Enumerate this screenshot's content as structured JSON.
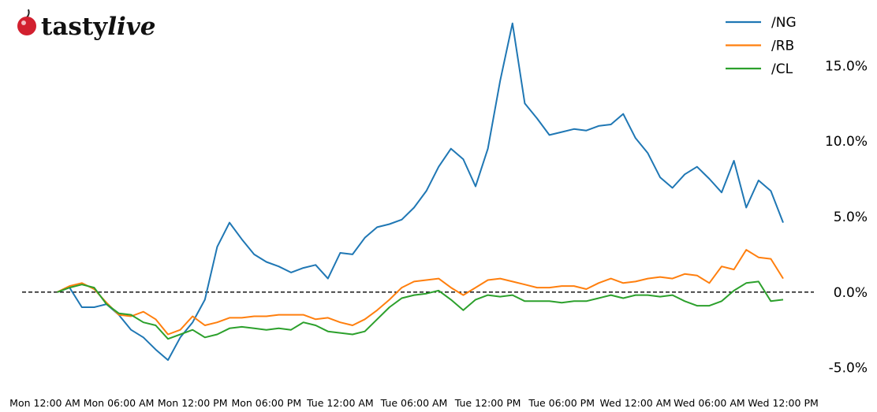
{
  "brand": [
    "tasty",
    "live"
  ],
  "chart_data": {
    "type": "line",
    "categories": [
      "Mon 12:00 AM",
      null,
      null,
      null,
      null,
      null,
      "Mon 06:00 AM",
      null,
      null,
      null,
      null,
      null,
      "Mon 12:00 PM",
      null,
      null,
      null,
      null,
      null,
      "Mon 06:00 PM",
      null,
      null,
      null,
      null,
      null,
      "Tue 12:00 AM",
      null,
      null,
      null,
      null,
      null,
      "Tue 06:00 AM",
      null,
      null,
      null,
      null,
      null,
      "Tue 12:00 PM",
      null,
      null,
      null,
      null,
      null,
      "Tue 06:00 PM",
      null,
      null,
      null,
      null,
      null,
      "Wed 12:00 AM",
      null,
      null,
      null,
      null,
      null,
      "Wed 06:00 AM",
      null,
      null,
      null,
      null,
      null,
      "Wed 12:00 PM"
    ],
    "series": [
      {
        "name": "/NG",
        "color": "#1f77b4",
        "values": [
          null,
          0,
          0.3,
          -1.0,
          -1.0,
          -0.8,
          -1.5,
          -2.5,
          -3.0,
          -3.8,
          -4.5,
          -3.0,
          -2.0,
          -0.5,
          3.0,
          4.6,
          3.5,
          2.5,
          2.0,
          1.7,
          1.3,
          1.6,
          1.8,
          0.9,
          2.6,
          2.5,
          3.6,
          4.3,
          4.5,
          4.8,
          5.6,
          6.7,
          8.3,
          9.5,
          8.8,
          7.0,
          9.5,
          14.0,
          17.8,
          12.5,
          11.5,
          10.4,
          10.6,
          10.8,
          10.7,
          11.0,
          11.1,
          11.8,
          10.2,
          9.2,
          7.6,
          6.9,
          7.8,
          8.3,
          7.5,
          6.6,
          8.7,
          5.6,
          7.4,
          6.7,
          4.6
        ]
      },
      {
        "name": "/RB",
        "color": "#ff7f0e",
        "values": [
          null,
          0,
          0.4,
          0.6,
          0.2,
          -0.7,
          -1.5,
          -1.6,
          -1.3,
          -1.8,
          -2.8,
          -2.5,
          -1.6,
          -2.2,
          -2.0,
          -1.7,
          -1.7,
          -1.6,
          -1.6,
          -1.5,
          -1.5,
          -1.5,
          -1.8,
          -1.7,
          -2.0,
          -2.2,
          -1.8,
          -1.2,
          -0.5,
          0.3,
          0.7,
          0.8,
          0.9,
          0.3,
          -0.2,
          0.3,
          0.8,
          0.9,
          0.7,
          0.5,
          0.3,
          0.3,
          0.4,
          0.4,
          0.2,
          0.6,
          0.9,
          0.6,
          0.7,
          0.9,
          1.0,
          0.9,
          1.2,
          1.1,
          0.6,
          1.7,
          1.5,
          2.8,
          2.3,
          2.2,
          0.9
        ]
      },
      {
        "name": "/CL",
        "color": "#2ca02c",
        "values": [
          null,
          0,
          0.3,
          0.5,
          0.3,
          -0.8,
          -1.4,
          -1.5,
          -2.0,
          -2.2,
          -3.1,
          -2.8,
          -2.5,
          -3.0,
          -2.8,
          -2.4,
          -2.3,
          -2.4,
          -2.5,
          -2.4,
          -2.5,
          -2.0,
          -2.2,
          -2.6,
          -2.7,
          -2.8,
          -2.6,
          -1.8,
          -1.0,
          -0.4,
          -0.2,
          -0.1,
          0.1,
          -0.5,
          -1.2,
          -0.5,
          -0.2,
          -0.3,
          -0.2,
          -0.6,
          -0.6,
          -0.6,
          -0.7,
          -0.6,
          -0.6,
          -0.4,
          -0.2,
          -0.4,
          -0.2,
          -0.2,
          -0.3,
          -0.2,
          -0.6,
          -0.9,
          -0.9,
          -0.6,
          0.1,
          0.6,
          0.7,
          -0.6,
          -0.5
        ]
      }
    ],
    "ylim": [
      -5.8,
      18.3
    ],
    "yticks": [
      {
        "value": -5,
        "label": "-5.0%"
      },
      {
        "value": 0,
        "label": "0.0%"
      },
      {
        "value": 5,
        "label": "5.0%"
      },
      {
        "value": 10,
        "label": "10.0%"
      },
      {
        "value": 15,
        "label": "15.0%"
      }
    ],
    "hline": 0,
    "legend": "upper-right"
  }
}
